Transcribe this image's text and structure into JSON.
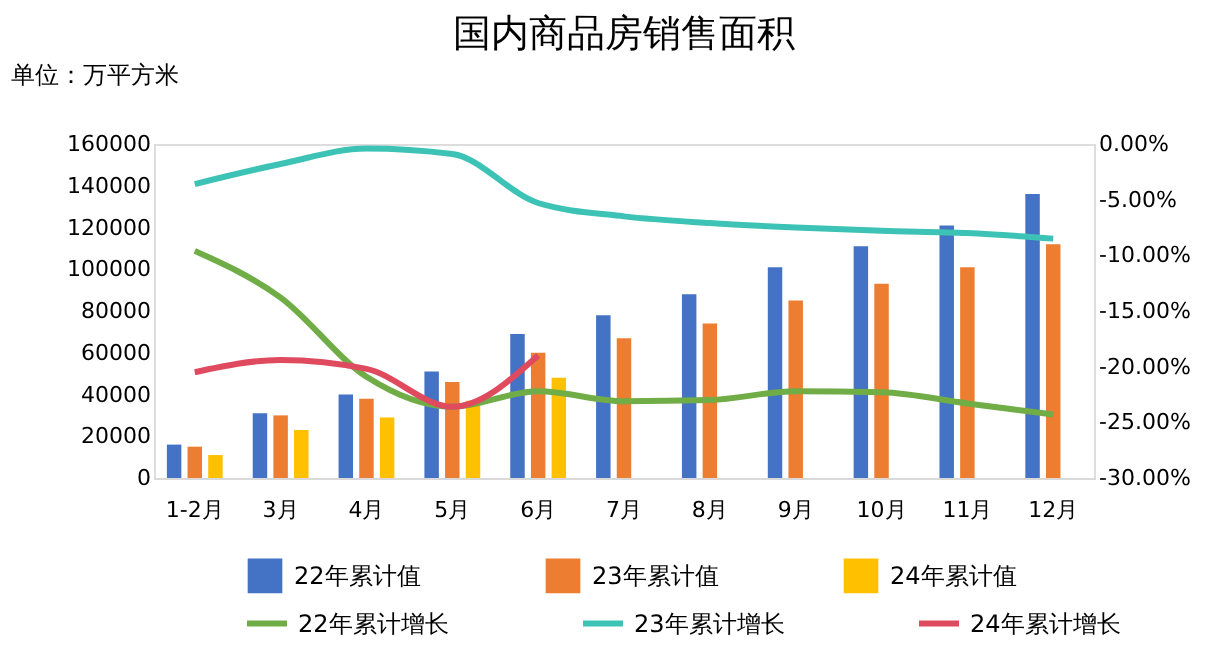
{
  "chart_data": {
    "type": "bar",
    "title": "国内商品房销售面积",
    "ylabel": "单位：万平方米",
    "categories": [
      "1-2月",
      "3月",
      "4月",
      "5月",
      "6月",
      "7月",
      "8月",
      "9月",
      "10月",
      "11月",
      "12月"
    ],
    "series": [
      {
        "name": "22年累计值",
        "color": "#4472c4",
        "values": [
          16000,
          31000,
          40000,
          51000,
          69000,
          78000,
          88000,
          101000,
          111000,
          121000,
          136000
        ]
      },
      {
        "name": "23年累计值",
        "color": "#ed7d31",
        "values": [
          15000,
          30000,
          38000,
          46000,
          60000,
          67000,
          74000,
          85000,
          93000,
          101000,
          112000
        ]
      },
      {
        "name": "24年累计值",
        "color": "#ffc000",
        "values": [
          11000,
          23000,
          29000,
          37000,
          48000,
          null,
          null,
          null,
          null,
          null,
          null
        ]
      },
      {
        "name": "22年累计增长",
        "type": "line",
        "axis": "y2",
        "color": "#70ad47",
        "values": [
          -9.6,
          -13.8,
          -20.9,
          -23.6,
          -22.2,
          -23.1,
          -23.0,
          -22.2,
          -22.3,
          -23.3,
          -24.3
        ]
      },
      {
        "name": "23年累计增长",
        "type": "line",
        "axis": "y2",
        "color": "#3cc3b5",
        "values": [
          -3.6,
          -1.8,
          -0.4,
          -0.9,
          -5.3,
          -6.5,
          -7.1,
          -7.5,
          -7.8,
          -8.0,
          -8.5
        ]
      },
      {
        "name": "24年累计增长",
        "type": "line",
        "axis": "y2",
        "color": "#e04a5f",
        "values": [
          -20.5,
          -19.4,
          -20.2,
          -23.6,
          -19.0,
          null,
          null,
          null,
          null,
          null,
          null
        ]
      }
    ],
    "ylim": [
      0,
      160000
    ],
    "yticks": [
      0,
      20000,
      40000,
      60000,
      80000,
      100000,
      120000,
      140000,
      160000
    ],
    "y2lim": [
      -30,
      0
    ],
    "y2ticks": [
      {
        "value": 0,
        "label": "0.00%"
      },
      {
        "value": -5,
        "label": "-5.00%"
      },
      {
        "value": -10,
        "label": "-10.00%"
      },
      {
        "value": -15,
        "label": "-15.00%"
      },
      {
        "value": -20,
        "label": "-20.00%"
      },
      {
        "value": -25,
        "label": "-25.00%"
      },
      {
        "value": -30,
        "label": "-30.00%"
      }
    ],
    "grid": false,
    "legend": "bottom",
    "line_style": "solid",
    "marker": "none"
  }
}
